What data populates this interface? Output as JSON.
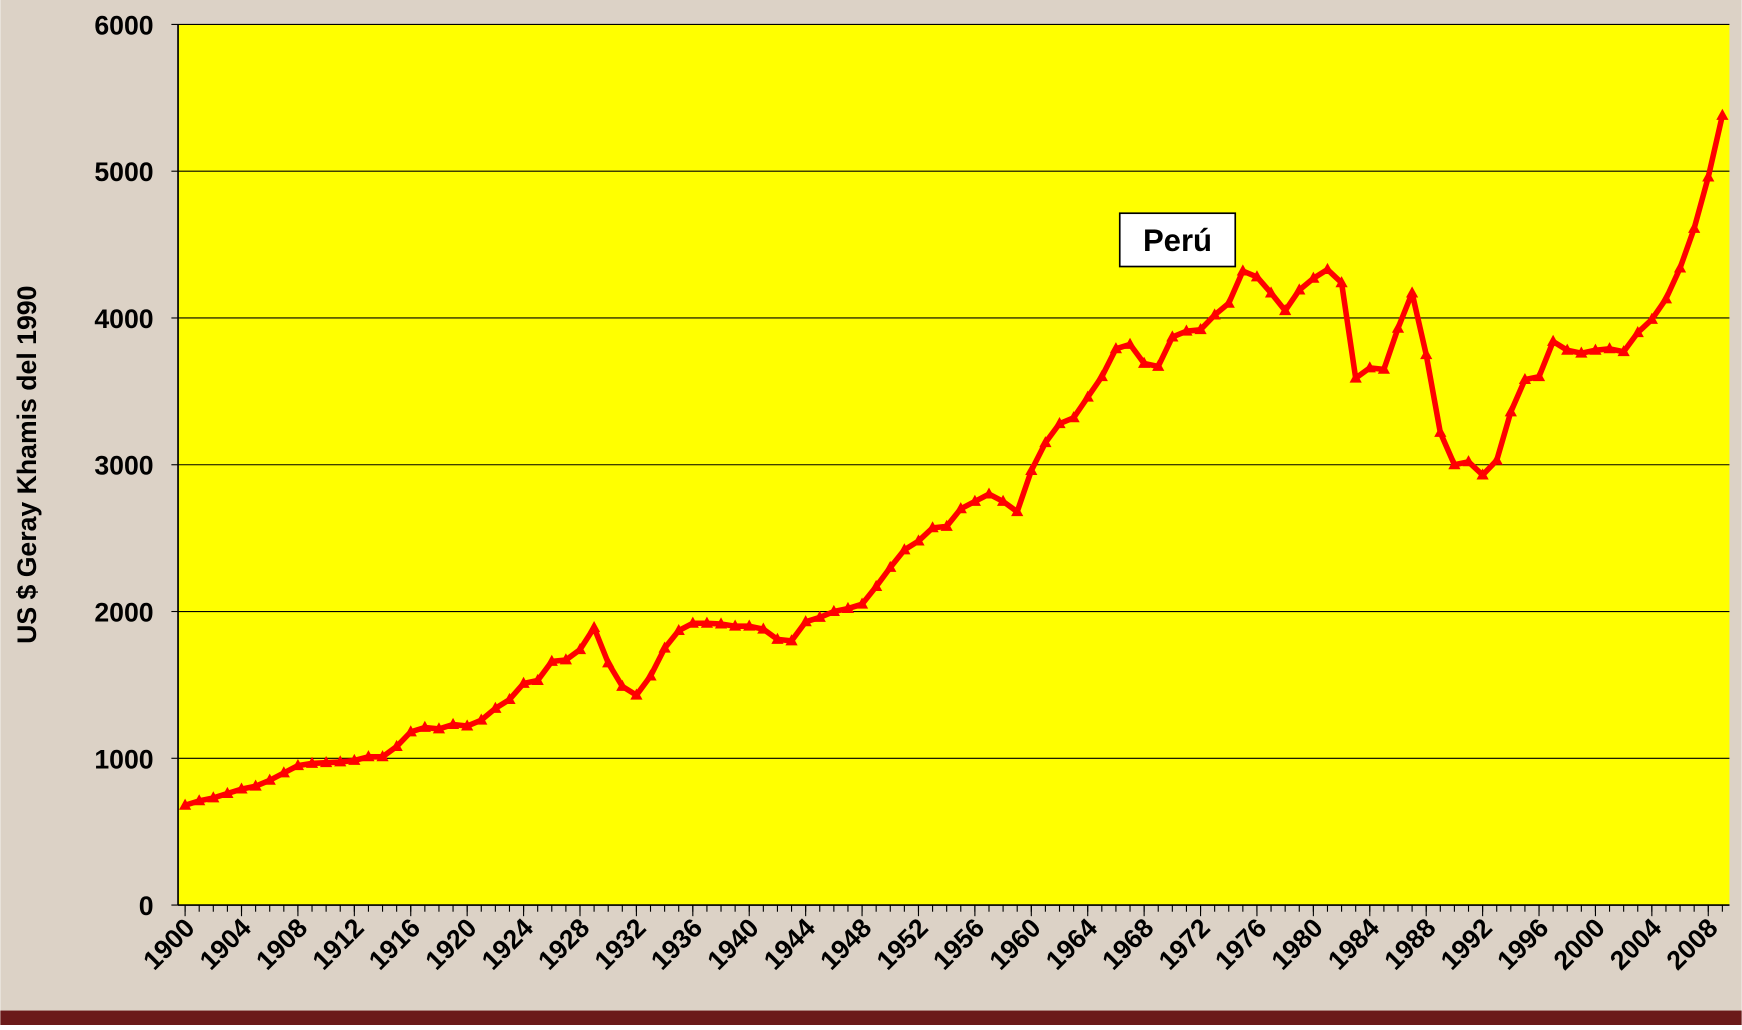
{
  "chart_data": {
    "type": "line",
    "annotation": "Perú",
    "y_label": "US $ Geray Khamis del 1990",
    "x": [
      1900,
      1901,
      1902,
      1903,
      1904,
      1905,
      1906,
      1907,
      1908,
      1909,
      1910,
      1911,
      1912,
      1913,
      1914,
      1915,
      1916,
      1917,
      1918,
      1919,
      1920,
      1921,
      1922,
      1923,
      1924,
      1925,
      1926,
      1927,
      1928,
      1929,
      1930,
      1931,
      1932,
      1933,
      1934,
      1935,
      1936,
      1937,
      1938,
      1939,
      1940,
      1941,
      1942,
      1943,
      1944,
      1945,
      1946,
      1947,
      1948,
      1949,
      1950,
      1951,
      1952,
      1953,
      1954,
      1955,
      1956,
      1957,
      1958,
      1959,
      1960,
      1961,
      1962,
      1963,
      1964,
      1965,
      1966,
      1967,
      1968,
      1969,
      1970,
      1971,
      1972,
      1973,
      1974,
      1975,
      1976,
      1977,
      1978,
      1979,
      1980,
      1981,
      1982,
      1983,
      1984,
      1985,
      1986,
      1987,
      1988,
      1989,
      1990,
      1991,
      1992,
      1993,
      1994,
      1995,
      1996,
      1997,
      1998,
      1999,
      2000,
      2001,
      2002,
      2003,
      2004,
      2005,
      2006,
      2007,
      2008,
      2009
    ],
    "series": [
      {
        "color": "#ff0000",
        "values": [
          680,
          710,
          730,
          760,
          790,
          810,
          850,
          900,
          950,
          965,
          970,
          975,
          985,
          1010,
          1010,
          1080,
          1180,
          1210,
          1200,
          1230,
          1220,
          1260,
          1340,
          1400,
          1510,
          1530,
          1660,
          1670,
          1740,
          1890,
          1650,
          1490,
          1430,
          1560,
          1750,
          1870,
          1920,
          1920,
          1915,
          1900,
          1900,
          1880,
          1810,
          1800,
          1930,
          1960,
          2000,
          2020,
          2050,
          2170,
          2300,
          2420,
          2480,
          2570,
          2580,
          2700,
          2750,
          2800,
          2750,
          2680,
          2960,
          3150,
          3280,
          3320,
          3460,
          3600,
          3790,
          3820,
          3690,
          3670,
          3870,
          3910,
          3920,
          4020,
          4100,
          4320,
          4280,
          4170,
          4050,
          4190,
          4270,
          4330,
          4240,
          3590,
          3660,
          3650,
          3930,
          4170,
          3750,
          3220,
          3000,
          3020,
          2930,
          3030,
          3360,
          3580,
          3600,
          3840,
          3780,
          3760,
          3780,
          3790,
          3770,
          3900,
          3990,
          4130,
          4340,
          4610,
          4960,
          5380
        ]
      }
    ],
    "xlim": [
      1899.5,
      2009.5
    ],
    "xticks": [
      1900,
      1904,
      1908,
      1912,
      1916,
      1920,
      1924,
      1928,
      1932,
      1936,
      1940,
      1944,
      1948,
      1952,
      1956,
      1960,
      1964,
      1968,
      1972,
      1976,
      1980,
      1984,
      1988,
      1992,
      1996,
      2000,
      2004,
      2008
    ],
    "ylim": [
      0,
      6000
    ],
    "yticks": [
      0,
      1000,
      2000,
      3000,
      4000,
      5000,
      6000
    ],
    "grid": true,
    "plot_color": "#ffff00"
  }
}
